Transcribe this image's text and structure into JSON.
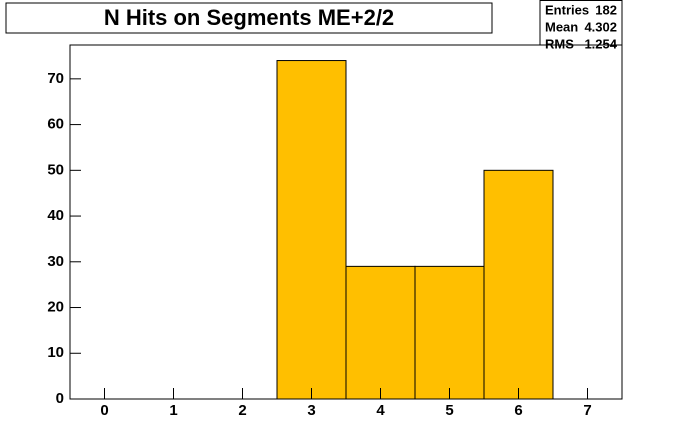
{
  "chart_data": {
    "type": "histogram",
    "title": "N Hits on Segments ME+2/2",
    "bins": [
      -0.5,
      0.5,
      1.5,
      2.5,
      3.5,
      4.5,
      5.5,
      6.5,
      7.5
    ],
    "values": [
      0,
      0,
      0,
      74,
      29,
      29,
      50,
      0
    ],
    "color": "#ffbf00",
    "edge_color": "#000000",
    "xlim": [
      -0.5,
      7.5
    ],
    "xticks": [
      0,
      1,
      2,
      3,
      4,
      5,
      6,
      7
    ],
    "ylim": [
      0,
      77.4
    ],
    "yticks": [
      0,
      10,
      20,
      30,
      40,
      50,
      60,
      70
    ],
    "stats": [
      {
        "label": "Entries",
        "value": 182
      },
      {
        "label": "Mean",
        "value": 4.302
      },
      {
        "label": "RMS",
        "value": 1.254
      }
    ]
  }
}
